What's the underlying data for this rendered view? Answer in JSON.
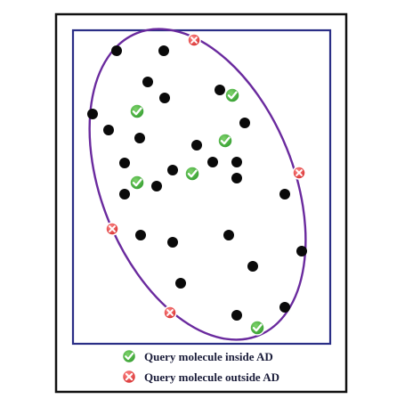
{
  "colors": {
    "outer_frame": "#111111",
    "inner_frame": "#2a2e86",
    "ellipse": "#6a2a9e",
    "training_dot": "#0a0a0a",
    "inside_marker": "#3aa838",
    "outside_marker": "#e0312f"
  },
  "icons": {
    "inside": "check-circle-icon",
    "outside": "x-circle-icon"
  },
  "legend": {
    "inside_label": "Query molecule inside AD",
    "outside_label": "Query molecule outside AD"
  },
  "counts": {
    "training_points": 34,
    "query_inside": 6,
    "query_outside": 4
  }
}
